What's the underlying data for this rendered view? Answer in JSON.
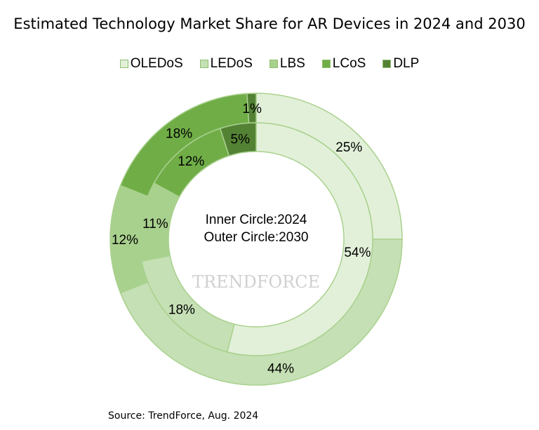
{
  "chart_data": {
    "type": "donut",
    "title": "Estimated Technology Market Share for AR Devices in 2024 and 2030",
    "categories": [
      "OLEDoS",
      "LEDoS",
      "LBS",
      "LCoS",
      "DLP"
    ],
    "colors": [
      "#e2f0d9",
      "#c5e0b4",
      "#a9d18e",
      "#70ad47",
      "#548235"
    ],
    "series": [
      {
        "name": "Inner Circle:2024",
        "values": [
          54,
          18,
          11,
          12,
          5
        ]
      },
      {
        "name": "Outer Circle:2030",
        "values": [
          25,
          44,
          12,
          18,
          1
        ]
      }
    ],
    "data_labels": {
      "inner": [
        "54%",
        "18%",
        "11%",
        "12%",
        "5%"
      ],
      "outer": [
        "25%",
        "44%",
        "12%",
        "18%",
        "1%"
      ]
    },
    "center_text": [
      "Inner Circle:2024",
      "Outer Circle:2030"
    ],
    "legend_position": "top",
    "watermark": "TRENDFORCE",
    "source": "Source: TrendForce, Aug. 2024"
  }
}
